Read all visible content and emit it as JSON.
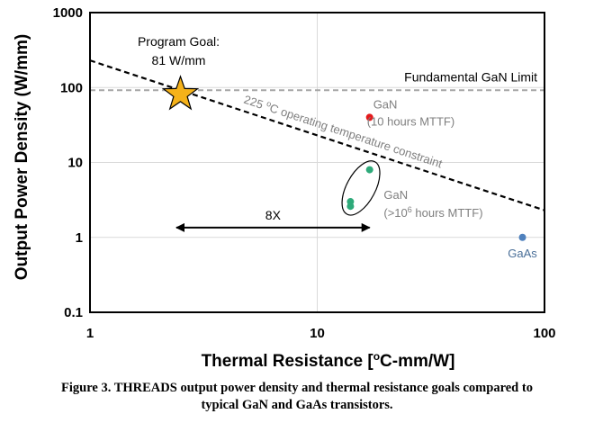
{
  "chart_data": {
    "type": "scatter",
    "x_scale": "log",
    "y_scale": "log",
    "xlim": [
      1,
      100
    ],
    "ylim": [
      0.1,
      1000
    ],
    "xlabel_parts": [
      "Thermal Resistance [",
      "o",
      "C-mm/W]"
    ],
    "ylabel": "Output Power Density (W/mm)",
    "x_ticks": [
      {
        "value": 1,
        "label": "1"
      },
      {
        "value": 10,
        "label": "10"
      },
      {
        "value": 100,
        "label": "100"
      }
    ],
    "y_ticks": [
      {
        "value": 0.1,
        "label": "0.1"
      },
      {
        "value": 1,
        "label": "1"
      },
      {
        "value": 10,
        "label": "10"
      },
      {
        "value": 100,
        "label": "100"
      },
      {
        "value": 1000,
        "label": "1000"
      }
    ],
    "grid": true,
    "series": [
      {
        "name": "GaN (10 hours MTTF)",
        "color": "#e41a1c",
        "points": [
          {
            "x": 17,
            "y": 40
          }
        ]
      },
      {
        "name": "GaN (>10^6 hours MTTF)",
        "color": "#2eaa7a",
        "points": [
          {
            "x": 17,
            "y": 8
          },
          {
            "x": 14,
            "y": 3
          },
          {
            "x": 14,
            "y": 2.6
          }
        ]
      },
      {
        "name": "GaAs",
        "color": "#4f81bd",
        "points": [
          {
            "x": 80,
            "y": 1
          }
        ]
      }
    ],
    "program_goal": {
      "x": 2.5,
      "y": 81,
      "label_line1": "Program Goal:",
      "label_line2": "81 W/mm",
      "color": "#f5b21a"
    },
    "fundamental_limit": {
      "y": 92,
      "label": "Fundamental GaN Limit",
      "color": "#a6a6a6"
    },
    "temperature_constraint": {
      "x1": 1,
      "y1": 230,
      "x2": 100,
      "y2": 2.3,
      "label_prefix": "225 ",
      "label_super": "o",
      "label_suffix": "C operating temperature constraint"
    },
    "improvement_arrow": {
      "x1": 2.4,
      "x2": 17,
      "y": 1.35,
      "label": "8X"
    },
    "annotations": {
      "gan10_line1": "GaN",
      "gan10_line2": "(10 hours MTTF)",
      "gan6_line1": "GaN",
      "gan6_line2_prefix": "(>10",
      "gan6_line2_super": "6",
      "gan6_line2_suffix": " hours MTTF)",
      "gaas": "GaAs"
    }
  },
  "caption": {
    "line1": "Figure 3. THREADS output power density and thermal resistance goals compared to",
    "line2": "typical GaN and GaAs transistors."
  }
}
